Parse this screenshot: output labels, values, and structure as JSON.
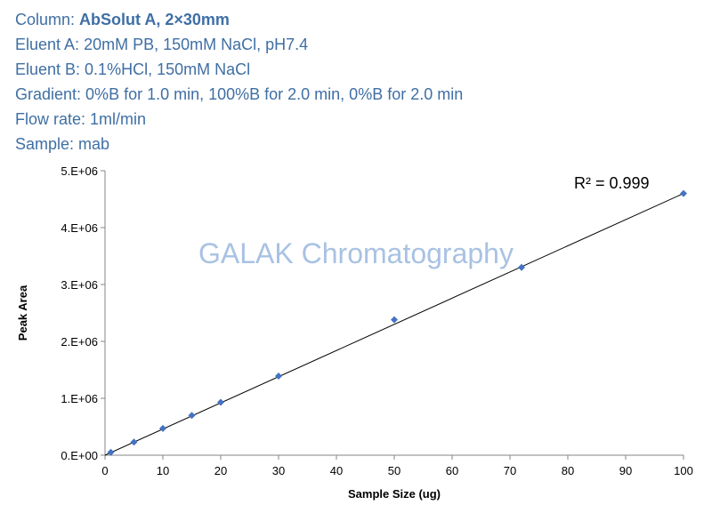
{
  "header": {
    "lines": [
      {
        "label": "Column: ",
        "value": "AbSolut A, 2×30mm",
        "bold": true
      },
      {
        "label": "Eluent A: ",
        "value": "20mM PB, 150mM NaCl, pH7.4",
        "bold": false
      },
      {
        "label": "Eluent B: ",
        "value": "0.1%HCl, 150mM NaCl",
        "bold": false
      },
      {
        "label": "Gradient: ",
        "value": "0%B for 1.0 min, 100%B for 2.0 min, 0%B for 2.0 min",
        "bold": false
      },
      {
        "label": "Flow rate: ",
        "value": "1ml/min",
        "bold": false
      },
      {
        "label": "Sample: ",
        "value": "mab",
        "bold": false
      }
    ]
  },
  "watermark": "GALAK Chromatography",
  "chart_data": {
    "type": "scatter",
    "xlabel": "Sample Size (ug)",
    "ylabel": "Peak Area",
    "xlim": [
      0,
      100
    ],
    "ylim": [
      0,
      5000000
    ],
    "xticks": [
      0,
      10,
      20,
      30,
      40,
      50,
      60,
      70,
      80,
      90,
      100
    ],
    "xtick_labels": [
      "0",
      "10",
      "20",
      "30",
      "40",
      "50",
      "60",
      "70",
      "80",
      "90",
      "100"
    ],
    "yticks": [
      0,
      1000000,
      2000000,
      3000000,
      4000000,
      5000000
    ],
    "ytick_labels": [
      "0.E+00",
      "1.E+06",
      "2.E+06",
      "3.E+06",
      "4.E+06",
      "5.E+06"
    ],
    "grid": false,
    "series": [
      {
        "x": [
          1,
          5,
          10,
          15,
          20,
          30,
          50,
          72,
          100
        ],
        "y": [
          50000,
          230000,
          470000,
          700000,
          930000,
          1390000,
          2380000,
          3300000,
          4600000
        ],
        "color": "#4472c4",
        "marker": "diamond"
      }
    ],
    "trendline": {
      "type": "linear",
      "from": [
        0,
        0
      ],
      "to": [
        100,
        4600000
      ],
      "color": "#000000",
      "r2_label": "R² = 0.999"
    }
  }
}
